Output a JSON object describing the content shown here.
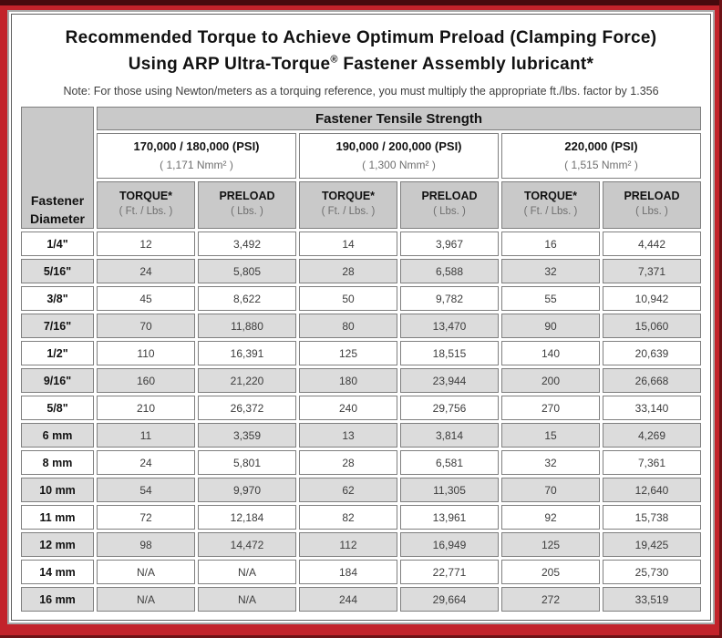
{
  "page": {
    "title_line1": "Recommended Torque to Achieve Optimum Preload (Clamping Force)",
    "title_line2_prefix": "Using ARP Ultra-Torque",
    "title_line2_reg": "®",
    "title_line2_suffix": " Fastener Assembly lubricant*",
    "note": "Note: For those using Newton/meters as a torquing reference, you must multiply the appropriate ft./lbs. factor by 1.356"
  },
  "colors": {
    "frame_red": "#c2232b",
    "frame_dark_maroon": "#470a0e",
    "header_gray": "#c9c9c9",
    "row_alt_gray": "#dcdcdc",
    "cell_border_gray": "#7f7f7f"
  },
  "table": {
    "corner_line1": "Fastener",
    "corner_line2": "Diameter",
    "tensile_header": "Fastener Tensile Strength",
    "strength_groups": [
      {
        "psi": "170,000 / 180,000 (PSI)",
        "nmm": "( 1,171 Nmm² )"
      },
      {
        "psi": "190,000 / 200,000 (PSI)",
        "nmm": "( 1,300 Nmm² )"
      },
      {
        "psi": "220,000 (PSI)",
        "nmm": "( 1,515 Nmm² )"
      }
    ],
    "col_headers": {
      "torque_label": "TORQUE*",
      "torque_unit": "( Ft. / Lbs. )",
      "preload_label": "PRELOAD",
      "preload_unit": "( Lbs. )"
    },
    "rows": [
      {
        "diameter": "1/4\"",
        "values": [
          "12",
          "3,492",
          "14",
          "3,967",
          "16",
          "4,442"
        ]
      },
      {
        "diameter": "5/16\"",
        "values": [
          "24",
          "5,805",
          "28",
          "6,588",
          "32",
          "7,371"
        ]
      },
      {
        "diameter": "3/8\"",
        "values": [
          "45",
          "8,622",
          "50",
          "9,782",
          "55",
          "10,942"
        ]
      },
      {
        "diameter": "7/16\"",
        "values": [
          "70",
          "11,880",
          "80",
          "13,470",
          "90",
          "15,060"
        ]
      },
      {
        "diameter": "1/2\"",
        "values": [
          "110",
          "16,391",
          "125",
          "18,515",
          "140",
          "20,639"
        ]
      },
      {
        "diameter": "9/16\"",
        "values": [
          "160",
          "21,220",
          "180",
          "23,944",
          "200",
          "26,668"
        ]
      },
      {
        "diameter": "5/8\"",
        "values": [
          "210",
          "26,372",
          "240",
          "29,756",
          "270",
          "33,140"
        ]
      },
      {
        "diameter": "6 mm",
        "values": [
          "11",
          "3,359",
          "13",
          "3,814",
          "15",
          "4,269"
        ]
      },
      {
        "diameter": "8 mm",
        "values": [
          "24",
          "5,801",
          "28",
          "6,581",
          "32",
          "7,361"
        ]
      },
      {
        "diameter": "10 mm",
        "values": [
          "54",
          "9,970",
          "62",
          "11,305",
          "70",
          "12,640"
        ]
      },
      {
        "diameter": "11 mm",
        "values": [
          "72",
          "12,184",
          "82",
          "13,961",
          "92",
          "15,738"
        ]
      },
      {
        "diameter": "12 mm",
        "values": [
          "98",
          "14,472",
          "112",
          "16,949",
          "125",
          "19,425"
        ]
      },
      {
        "diameter": "14 mm",
        "values": [
          "N/A",
          "N/A",
          "184",
          "22,771",
          "205",
          "25,730"
        ]
      },
      {
        "diameter": "16 mm",
        "values": [
          "N/A",
          "N/A",
          "244",
          "29,664",
          "272",
          "33,519"
        ]
      }
    ]
  }
}
